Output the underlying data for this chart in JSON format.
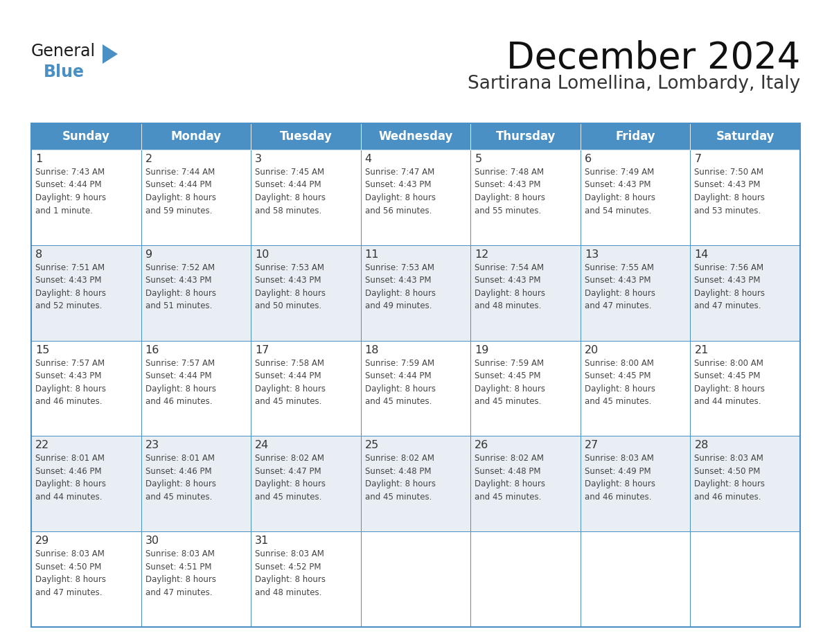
{
  "title": "December 2024",
  "subtitle": "Sartirana Lomellina, Lombardy, Italy",
  "header_color": "#4a90c4",
  "header_text_color": "#ffffff",
  "days_of_week": [
    "Sunday",
    "Monday",
    "Tuesday",
    "Wednesday",
    "Thursday",
    "Friday",
    "Saturday"
  ],
  "background_color": "#ffffff",
  "cell_bg_even": "#e8eef4",
  "cell_bg_odd": "#ffffff",
  "cell_border_color": "#4a90c4",
  "day_number_color": "#333333",
  "cell_text_color": "#444444",
  "logo_color_general": "#1a1a1a",
  "logo_color_blue": "#4a90c4",
  "logo_triangle_color": "#4a90c4",
  "calendar": [
    [
      {
        "day": 1,
        "sunrise": "7:43 AM",
        "sunset": "4:44 PM",
        "daylight_h": "9 hours",
        "daylight_m": "and 1 minute."
      },
      {
        "day": 2,
        "sunrise": "7:44 AM",
        "sunset": "4:44 PM",
        "daylight_h": "8 hours",
        "daylight_m": "and 59 minutes."
      },
      {
        "day": 3,
        "sunrise": "7:45 AM",
        "sunset": "4:44 PM",
        "daylight_h": "8 hours",
        "daylight_m": "and 58 minutes."
      },
      {
        "day": 4,
        "sunrise": "7:47 AM",
        "sunset": "4:43 PM",
        "daylight_h": "8 hours",
        "daylight_m": "and 56 minutes."
      },
      {
        "day": 5,
        "sunrise": "7:48 AM",
        "sunset": "4:43 PM",
        "daylight_h": "8 hours",
        "daylight_m": "and 55 minutes."
      },
      {
        "day": 6,
        "sunrise": "7:49 AM",
        "sunset": "4:43 PM",
        "daylight_h": "8 hours",
        "daylight_m": "and 54 minutes."
      },
      {
        "day": 7,
        "sunrise": "7:50 AM",
        "sunset": "4:43 PM",
        "daylight_h": "8 hours",
        "daylight_m": "and 53 minutes."
      }
    ],
    [
      {
        "day": 8,
        "sunrise": "7:51 AM",
        "sunset": "4:43 PM",
        "daylight_h": "8 hours",
        "daylight_m": "and 52 minutes."
      },
      {
        "day": 9,
        "sunrise": "7:52 AM",
        "sunset": "4:43 PM",
        "daylight_h": "8 hours",
        "daylight_m": "and 51 minutes."
      },
      {
        "day": 10,
        "sunrise": "7:53 AM",
        "sunset": "4:43 PM",
        "daylight_h": "8 hours",
        "daylight_m": "and 50 minutes."
      },
      {
        "day": 11,
        "sunrise": "7:53 AM",
        "sunset": "4:43 PM",
        "daylight_h": "8 hours",
        "daylight_m": "and 49 minutes."
      },
      {
        "day": 12,
        "sunrise": "7:54 AM",
        "sunset": "4:43 PM",
        "daylight_h": "8 hours",
        "daylight_m": "and 48 minutes."
      },
      {
        "day": 13,
        "sunrise": "7:55 AM",
        "sunset": "4:43 PM",
        "daylight_h": "8 hours",
        "daylight_m": "and 47 minutes."
      },
      {
        "day": 14,
        "sunrise": "7:56 AM",
        "sunset": "4:43 PM",
        "daylight_h": "8 hours",
        "daylight_m": "and 47 minutes."
      }
    ],
    [
      {
        "day": 15,
        "sunrise": "7:57 AM",
        "sunset": "4:43 PM",
        "daylight_h": "8 hours",
        "daylight_m": "and 46 minutes."
      },
      {
        "day": 16,
        "sunrise": "7:57 AM",
        "sunset": "4:44 PM",
        "daylight_h": "8 hours",
        "daylight_m": "and 46 minutes."
      },
      {
        "day": 17,
        "sunrise": "7:58 AM",
        "sunset": "4:44 PM",
        "daylight_h": "8 hours",
        "daylight_m": "and 45 minutes."
      },
      {
        "day": 18,
        "sunrise": "7:59 AM",
        "sunset": "4:44 PM",
        "daylight_h": "8 hours",
        "daylight_m": "and 45 minutes."
      },
      {
        "day": 19,
        "sunrise": "7:59 AM",
        "sunset": "4:45 PM",
        "daylight_h": "8 hours",
        "daylight_m": "and 45 minutes."
      },
      {
        "day": 20,
        "sunrise": "8:00 AM",
        "sunset": "4:45 PM",
        "daylight_h": "8 hours",
        "daylight_m": "and 45 minutes."
      },
      {
        "day": 21,
        "sunrise": "8:00 AM",
        "sunset": "4:45 PM",
        "daylight_h": "8 hours",
        "daylight_m": "and 44 minutes."
      }
    ],
    [
      {
        "day": 22,
        "sunrise": "8:01 AM",
        "sunset": "4:46 PM",
        "daylight_h": "8 hours",
        "daylight_m": "and 44 minutes."
      },
      {
        "day": 23,
        "sunrise": "8:01 AM",
        "sunset": "4:46 PM",
        "daylight_h": "8 hours",
        "daylight_m": "and 45 minutes."
      },
      {
        "day": 24,
        "sunrise": "8:02 AM",
        "sunset": "4:47 PM",
        "daylight_h": "8 hours",
        "daylight_m": "and 45 minutes."
      },
      {
        "day": 25,
        "sunrise": "8:02 AM",
        "sunset": "4:48 PM",
        "daylight_h": "8 hours",
        "daylight_m": "and 45 minutes."
      },
      {
        "day": 26,
        "sunrise": "8:02 AM",
        "sunset": "4:48 PM",
        "daylight_h": "8 hours",
        "daylight_m": "and 45 minutes."
      },
      {
        "day": 27,
        "sunrise": "8:03 AM",
        "sunset": "4:49 PM",
        "daylight_h": "8 hours",
        "daylight_m": "and 46 minutes."
      },
      {
        "day": 28,
        "sunrise": "8:03 AM",
        "sunset": "4:50 PM",
        "daylight_h": "8 hours",
        "daylight_m": "and 46 minutes."
      }
    ],
    [
      {
        "day": 29,
        "sunrise": "8:03 AM",
        "sunset": "4:50 PM",
        "daylight_h": "8 hours",
        "daylight_m": "and 47 minutes."
      },
      {
        "day": 30,
        "sunrise": "8:03 AM",
        "sunset": "4:51 PM",
        "daylight_h": "8 hours",
        "daylight_m": "and 47 minutes."
      },
      {
        "day": 31,
        "sunrise": "8:03 AM",
        "sunset": "4:52 PM",
        "daylight_h": "8 hours",
        "daylight_m": "and 48 minutes."
      },
      null,
      null,
      null,
      null
    ]
  ]
}
